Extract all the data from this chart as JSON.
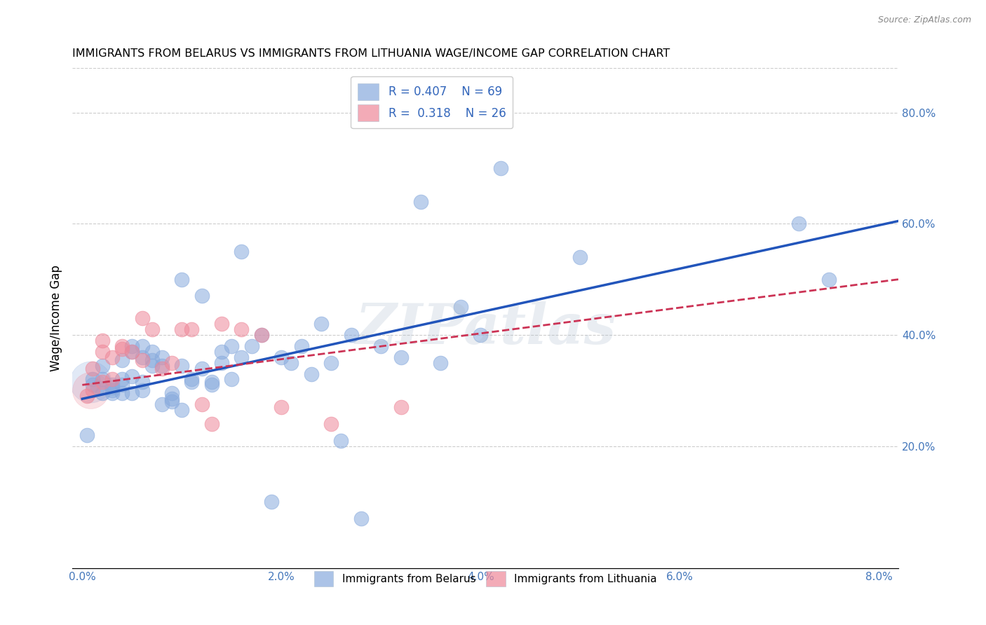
{
  "title": "IMMIGRANTS FROM BELARUS VS IMMIGRANTS FROM LITHUANIA WAGE/INCOME GAP CORRELATION CHART",
  "source": "Source: ZipAtlas.com",
  "ylabel": "Wage/Income Gap",
  "xlabel_ticks": [
    "0.0%",
    "2.0%",
    "4.0%",
    "6.0%",
    "8.0%"
  ],
  "xlabel_values": [
    0.0,
    0.02,
    0.04,
    0.06,
    0.08
  ],
  "ylabel_ticks": [
    "20.0%",
    "40.0%",
    "60.0%",
    "80.0%"
  ],
  "ylabel_values": [
    0.2,
    0.4,
    0.6,
    0.8
  ],
  "xlim": [
    -0.001,
    0.082
  ],
  "ylim": [
    -0.02,
    0.88
  ],
  "watermark": "ZIPatlas",
  "legend_r1": "R = 0.407",
  "legend_n1": "N = 69",
  "legend_r2": "R = 0.318",
  "legend_n2": "N = 26",
  "legend_label1": "Immigrants from Belarus",
  "legend_label2": "Immigrants from Lithuania",
  "blue_color": "#88AADD",
  "pink_color": "#EE8899",
  "line_blue": "#2255BB",
  "line_pink": "#CC3355",
  "belarus_x": [
    0.0005,
    0.001,
    0.001,
    0.0015,
    0.002,
    0.002,
    0.002,
    0.003,
    0.003,
    0.003,
    0.003,
    0.004,
    0.004,
    0.004,
    0.004,
    0.005,
    0.005,
    0.005,
    0.005,
    0.006,
    0.006,
    0.006,
    0.006,
    0.007,
    0.007,
    0.007,
    0.008,
    0.008,
    0.008,
    0.009,
    0.009,
    0.009,
    0.01,
    0.01,
    0.01,
    0.011,
    0.011,
    0.012,
    0.012,
    0.013,
    0.013,
    0.014,
    0.014,
    0.015,
    0.015,
    0.016,
    0.016,
    0.017,
    0.018,
    0.019,
    0.02,
    0.021,
    0.022,
    0.023,
    0.024,
    0.025,
    0.026,
    0.027,
    0.028,
    0.03,
    0.032,
    0.034,
    0.036,
    0.038,
    0.04,
    0.042,
    0.05,
    0.072,
    0.075
  ],
  "belarus_y": [
    0.22,
    0.32,
    0.31,
    0.305,
    0.295,
    0.32,
    0.345,
    0.3,
    0.295,
    0.31,
    0.305,
    0.32,
    0.295,
    0.31,
    0.355,
    0.37,
    0.38,
    0.295,
    0.325,
    0.3,
    0.36,
    0.315,
    0.38,
    0.355,
    0.37,
    0.345,
    0.275,
    0.345,
    0.36,
    0.285,
    0.28,
    0.295,
    0.345,
    0.265,
    0.5,
    0.315,
    0.32,
    0.34,
    0.47,
    0.31,
    0.315,
    0.37,
    0.35,
    0.32,
    0.38,
    0.36,
    0.55,
    0.38,
    0.4,
    0.1,
    0.36,
    0.35,
    0.38,
    0.33,
    0.42,
    0.35,
    0.21,
    0.4,
    0.07,
    0.38,
    0.36,
    0.64,
    0.35,
    0.45,
    0.4,
    0.7,
    0.54,
    0.6,
    0.5
  ],
  "lithuania_x": [
    0.0005,
    0.001,
    0.001,
    0.002,
    0.002,
    0.002,
    0.003,
    0.003,
    0.004,
    0.004,
    0.005,
    0.006,
    0.006,
    0.007,
    0.008,
    0.009,
    0.01,
    0.011,
    0.012,
    0.013,
    0.014,
    0.016,
    0.018,
    0.02,
    0.025,
    0.032
  ],
  "lithuania_y": [
    0.29,
    0.34,
    0.3,
    0.315,
    0.37,
    0.39,
    0.32,
    0.36,
    0.38,
    0.375,
    0.37,
    0.355,
    0.43,
    0.41,
    0.34,
    0.35,
    0.41,
    0.41,
    0.275,
    0.24,
    0.42,
    0.41,
    0.4,
    0.27,
    0.24,
    0.27
  ],
  "trend_blue_x0": 0.0,
  "trend_blue_x1": 0.082,
  "trend_blue_y0": 0.285,
  "trend_blue_y1": 0.605,
  "trend_pink_x0": 0.0,
  "trend_pink_x1": 0.082,
  "trend_pink_y0": 0.31,
  "trend_pink_y1": 0.5
}
